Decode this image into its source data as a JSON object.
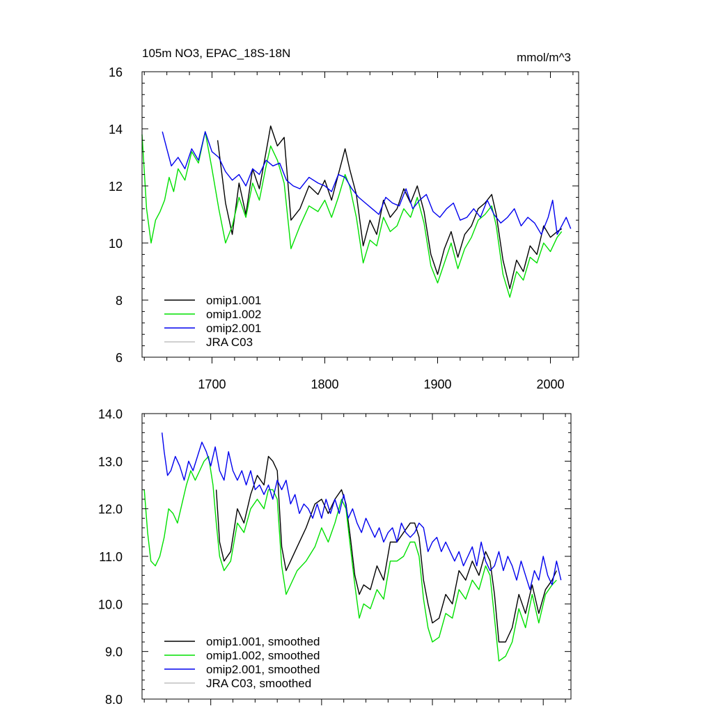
{
  "chart_data": [
    {
      "type": "line",
      "title": "105m NO3, EPAC_18S-18N",
      "units_label": "mmol/m^3",
      "xlim": [
        1638,
        2025
      ],
      "ylim": [
        6,
        16
      ],
      "x_ticks": [
        1700,
        1800,
        1900,
        2000
      ],
      "x_tick_labels": [
        "1700",
        "1800",
        "1900",
        "2000"
      ],
      "y_ticks": [
        6,
        8,
        10,
        12,
        14,
        16
      ],
      "y_tick_labels": [
        "6",
        "8",
        "10",
        "12",
        "14",
        "16"
      ],
      "legend_position": "bottom-left",
      "series": [
        {
          "name": "omip1.001",
          "color": "#000000",
          "x": [
            1705,
            1712,
            1718,
            1724,
            1730,
            1736,
            1742,
            1748,
            1752,
            1758,
            1764,
            1770,
            1778,
            1786,
            1794,
            1800,
            1806,
            1812,
            1818,
            1822,
            1828,
            1834,
            1840,
            1846,
            1852,
            1858,
            1864,
            1870,
            1876,
            1882,
            1888,
            1894,
            1900,
            1906,
            1912,
            1918,
            1924,
            1930,
            1936,
            1942,
            1948,
            1952,
            1958,
            1964,
            1970,
            1976,
            1982,
            1988,
            1994,
            2000,
            2006,
            2010
          ],
          "values": [
            13.6,
            11.4,
            10.3,
            12.1,
            11.0,
            12.6,
            11.9,
            13.2,
            14.1,
            13.4,
            13.7,
            10.8,
            11.2,
            12.0,
            11.7,
            12.2,
            11.5,
            12.4,
            13.3,
            12.6,
            11.7,
            9.9,
            10.8,
            10.3,
            11.5,
            10.9,
            11.2,
            11.9,
            11.4,
            12.0,
            11.1,
            9.6,
            8.9,
            9.8,
            10.4,
            9.5,
            10.3,
            10.6,
            11.2,
            11.4,
            11.7,
            11.0,
            9.4,
            8.4,
            9.4,
            9.0,
            9.9,
            9.6,
            10.6,
            10.2,
            10.4,
            10.5
          ]
        },
        {
          "name": "omip1.002",
          "color": "#00e000",
          "x": [
            1638,
            1642,
            1646,
            1650,
            1654,
            1658,
            1662,
            1666,
            1670,
            1676,
            1682,
            1688,
            1694,
            1700,
            1706,
            1712,
            1718,
            1724,
            1730,
            1736,
            1742,
            1748,
            1752,
            1758,
            1764,
            1770,
            1778,
            1786,
            1794,
            1800,
            1806,
            1812,
            1818,
            1822,
            1828,
            1834,
            1840,
            1846,
            1852,
            1858,
            1864,
            1870,
            1876,
            1882,
            1888,
            1894,
            1900,
            1906,
            1912,
            1918,
            1924,
            1930,
            1936,
            1942,
            1948,
            1952,
            1958,
            1964,
            1970,
            1976,
            1982,
            1988,
            1994,
            2000,
            2006,
            2010
          ],
          "values": [
            13.8,
            11.2,
            10.0,
            10.8,
            11.1,
            11.5,
            12.3,
            11.8,
            12.6,
            12.2,
            13.2,
            12.8,
            13.9,
            12.6,
            11.2,
            10.0,
            10.6,
            11.6,
            10.9,
            12.1,
            11.5,
            12.7,
            13.4,
            12.9,
            12.1,
            9.8,
            10.6,
            11.3,
            11.1,
            11.5,
            10.9,
            11.6,
            12.4,
            12.0,
            10.9,
            9.3,
            10.1,
            9.9,
            10.9,
            10.4,
            10.6,
            11.2,
            10.9,
            11.6,
            10.7,
            9.2,
            8.6,
            9.3,
            10.0,
            9.1,
            9.8,
            10.2,
            10.8,
            11.0,
            11.3,
            10.6,
            8.9,
            8.1,
            9.0,
            8.7,
            9.5,
            9.3,
            10.0,
            9.7,
            10.2,
            10.4
          ]
        },
        {
          "name": "omip2.001",
          "color": "#0000ee",
          "x": [
            1656,
            1660,
            1664,
            1670,
            1676,
            1682,
            1688,
            1694,
            1700,
            1706,
            1712,
            1718,
            1724,
            1730,
            1736,
            1742,
            1748,
            1754,
            1760,
            1766,
            1772,
            1778,
            1786,
            1794,
            1800,
            1806,
            1812,
            1818,
            1824,
            1830,
            1836,
            1842,
            1848,
            1854,
            1860,
            1866,
            1872,
            1878,
            1884,
            1890,
            1896,
            1902,
            1908,
            1914,
            1920,
            1926,
            1932,
            1938,
            1944,
            1950,
            1956,
            1962,
            1968,
            1974,
            1980,
            1986,
            1992,
            1998,
            2002,
            2006,
            2010,
            2014,
            2018
          ],
          "values": [
            13.9,
            13.3,
            12.7,
            13.0,
            12.6,
            13.3,
            12.9,
            13.9,
            13.2,
            13.0,
            12.5,
            12.2,
            12.4,
            12.0,
            12.6,
            12.4,
            12.9,
            12.7,
            12.8,
            12.2,
            12.0,
            11.9,
            12.3,
            12.1,
            12.0,
            11.8,
            12.4,
            12.3,
            11.9,
            11.6,
            11.4,
            11.2,
            11.0,
            11.6,
            11.4,
            11.3,
            11.9,
            11.2,
            11.5,
            11.7,
            11.1,
            10.9,
            11.2,
            11.4,
            10.8,
            10.9,
            11.2,
            10.9,
            11.5,
            11.0,
            10.7,
            10.9,
            11.2,
            10.6,
            10.9,
            10.7,
            10.3,
            10.9,
            11.5,
            10.3,
            10.6,
            10.9,
            10.5
          ]
        },
        {
          "name": "JRA C03",
          "color": "#c0c0c0",
          "x": [],
          "values": []
        }
      ]
    },
    {
      "type": "line",
      "title": "",
      "xlim": [
        1638,
        2025
      ],
      "ylim": [
        8.0,
        14.0
      ],
      "x_ticks": [
        1700,
        1800,
        1900,
        2000
      ],
      "y_ticks": [
        8.0,
        9.0,
        10.0,
        11.0,
        12.0,
        13.0,
        14.0
      ],
      "y_tick_labels": [
        "8.0",
        "9.0",
        "10.0",
        "11.0",
        "12.0",
        "13.0",
        "14.0"
      ],
      "legend_position": "bottom-left",
      "series": [
        {
          "name": "omip1.001, smoothed",
          "color": "#000000",
          "x": [
            1705,
            1708,
            1712,
            1718,
            1724,
            1730,
            1736,
            1742,
            1748,
            1752,
            1756,
            1760,
            1764,
            1768,
            1772,
            1778,
            1786,
            1794,
            1800,
            1806,
            1812,
            1818,
            1822,
            1826,
            1830,
            1834,
            1838,
            1844,
            1850,
            1856,
            1862,
            1868,
            1874,
            1880,
            1884,
            1888,
            1892,
            1896,
            1900,
            1906,
            1912,
            1918,
            1924,
            1930,
            1936,
            1942,
            1948,
            1952,
            1956,
            1960,
            1966,
            1972,
            1978,
            1984,
            1990,
            1996,
            2002,
            2008,
            2012
          ],
          "values": [
            12.4,
            11.3,
            10.9,
            11.1,
            12.0,
            11.7,
            12.3,
            12.7,
            12.5,
            13.1,
            13.0,
            12.8,
            11.2,
            10.7,
            10.9,
            11.2,
            11.6,
            12.1,
            12.2,
            11.9,
            12.2,
            12.4,
            12.1,
            11.4,
            10.6,
            10.2,
            10.4,
            10.3,
            10.8,
            10.5,
            11.3,
            11.3,
            11.5,
            11.7,
            11.7,
            11.4,
            10.5,
            10.0,
            9.6,
            9.7,
            10.2,
            10.0,
            10.7,
            10.5,
            10.9,
            10.6,
            11.1,
            10.9,
            10.2,
            9.2,
            9.2,
            9.5,
            10.2,
            9.8,
            10.4,
            9.8,
            10.3,
            10.5,
            10.7
          ]
        },
        {
          "name": "omip1.002, smoothed",
          "color": "#00e000",
          "x": [
            1640,
            1643,
            1646,
            1650,
            1654,
            1658,
            1662,
            1666,
            1670,
            1674,
            1678,
            1682,
            1686,
            1690,
            1694,
            1698,
            1702,
            1705,
            1708,
            1712,
            1718,
            1724,
            1730,
            1736,
            1742,
            1748,
            1752,
            1756,
            1760,
            1764,
            1768,
            1772,
            1778,
            1786,
            1794,
            1800,
            1806,
            1812,
            1818,
            1822,
            1826,
            1830,
            1834,
            1838,
            1844,
            1850,
            1856,
            1862,
            1868,
            1874,
            1880,
            1884,
            1888,
            1892,
            1896,
            1900,
            1906,
            1912,
            1918,
            1924,
            1930,
            1936,
            1942,
            1948,
            1952,
            1956,
            1960,
            1966,
            1972,
            1978,
            1984,
            1990,
            1996,
            2002,
            2008,
            2012
          ],
          "values": [
            12.4,
            11.5,
            10.9,
            10.8,
            11.0,
            11.4,
            12.0,
            11.9,
            11.7,
            12.1,
            12.5,
            12.8,
            12.6,
            12.8,
            13.0,
            13.1,
            12.5,
            11.7,
            11.0,
            10.7,
            10.9,
            11.7,
            11.5,
            12.0,
            12.2,
            12.0,
            12.4,
            12.4,
            12.2,
            10.8,
            10.2,
            10.4,
            10.7,
            10.9,
            11.2,
            11.6,
            11.3,
            11.7,
            12.2,
            12.0,
            11.2,
            10.4,
            9.7,
            10.0,
            9.9,
            10.3,
            10.1,
            10.9,
            10.9,
            11.0,
            11.3,
            11.3,
            11.0,
            10.1,
            9.5,
            9.2,
            9.3,
            9.8,
            9.7,
            10.3,
            10.1,
            10.5,
            10.3,
            10.8,
            10.6,
            9.7,
            8.8,
            8.9,
            9.2,
            9.9,
            9.5,
            10.2,
            9.6,
            10.2,
            10.4,
            10.5
          ]
        },
        {
          "name": "omip2.001, smoothed",
          "color": "#0000ee",
          "x": [
            1656,
            1658,
            1661,
            1664,
            1668,
            1672,
            1676,
            1680,
            1684,
            1688,
            1692,
            1696,
            1700,
            1704,
            1708,
            1712,
            1716,
            1720,
            1724,
            1728,
            1732,
            1736,
            1740,
            1744,
            1748,
            1752,
            1756,
            1760,
            1764,
            1768,
            1772,
            1776,
            1780,
            1784,
            1788,
            1792,
            1796,
            1800,
            1804,
            1808,
            1812,
            1816,
            1820,
            1824,
            1828,
            1832,
            1836,
            1840,
            1844,
            1848,
            1852,
            1856,
            1860,
            1864,
            1868,
            1872,
            1876,
            1880,
            1884,
            1888,
            1892,
            1896,
            1900,
            1904,
            1908,
            1912,
            1916,
            1920,
            1924,
            1928,
            1932,
            1936,
            1940,
            1944,
            1948,
            1952,
            1956,
            1960,
            1964,
            1968,
            1972,
            1976,
            1980,
            1984,
            1988,
            1992,
            1996,
            2000,
            2004,
            2008,
            2012,
            2016
          ],
          "values": [
            13.6,
            13.2,
            12.7,
            12.8,
            13.1,
            12.9,
            12.6,
            13.0,
            12.8,
            13.1,
            13.4,
            13.2,
            12.9,
            13.3,
            12.8,
            12.6,
            13.2,
            12.8,
            12.6,
            12.8,
            12.5,
            12.8,
            12.4,
            12.5,
            12.3,
            12.5,
            12.2,
            12.6,
            12.4,
            12.6,
            12.1,
            12.3,
            11.9,
            12.1,
            12.0,
            11.8,
            12.1,
            11.8,
            12.2,
            11.9,
            12.2,
            11.9,
            12.3,
            11.8,
            12.0,
            11.7,
            11.5,
            11.8,
            11.6,
            11.4,
            11.6,
            11.3,
            11.5,
            11.6,
            11.3,
            11.7,
            11.5,
            11.4,
            11.5,
            11.7,
            11.6,
            11.1,
            11.3,
            11.4,
            11.1,
            11.3,
            11.1,
            10.9,
            11.1,
            10.8,
            11.0,
            11.2,
            10.8,
            11.3,
            10.9,
            10.7,
            10.8,
            11.1,
            10.7,
            11.0,
            10.8,
            10.5,
            10.9,
            10.6,
            10.3,
            10.7,
            10.5,
            11.0,
            10.6,
            10.4,
            10.9,
            10.5
          ]
        },
        {
          "name": "JRA C03, smoothed",
          "color": "#c0c0c0",
          "x": [],
          "values": []
        }
      ]
    }
  ]
}
